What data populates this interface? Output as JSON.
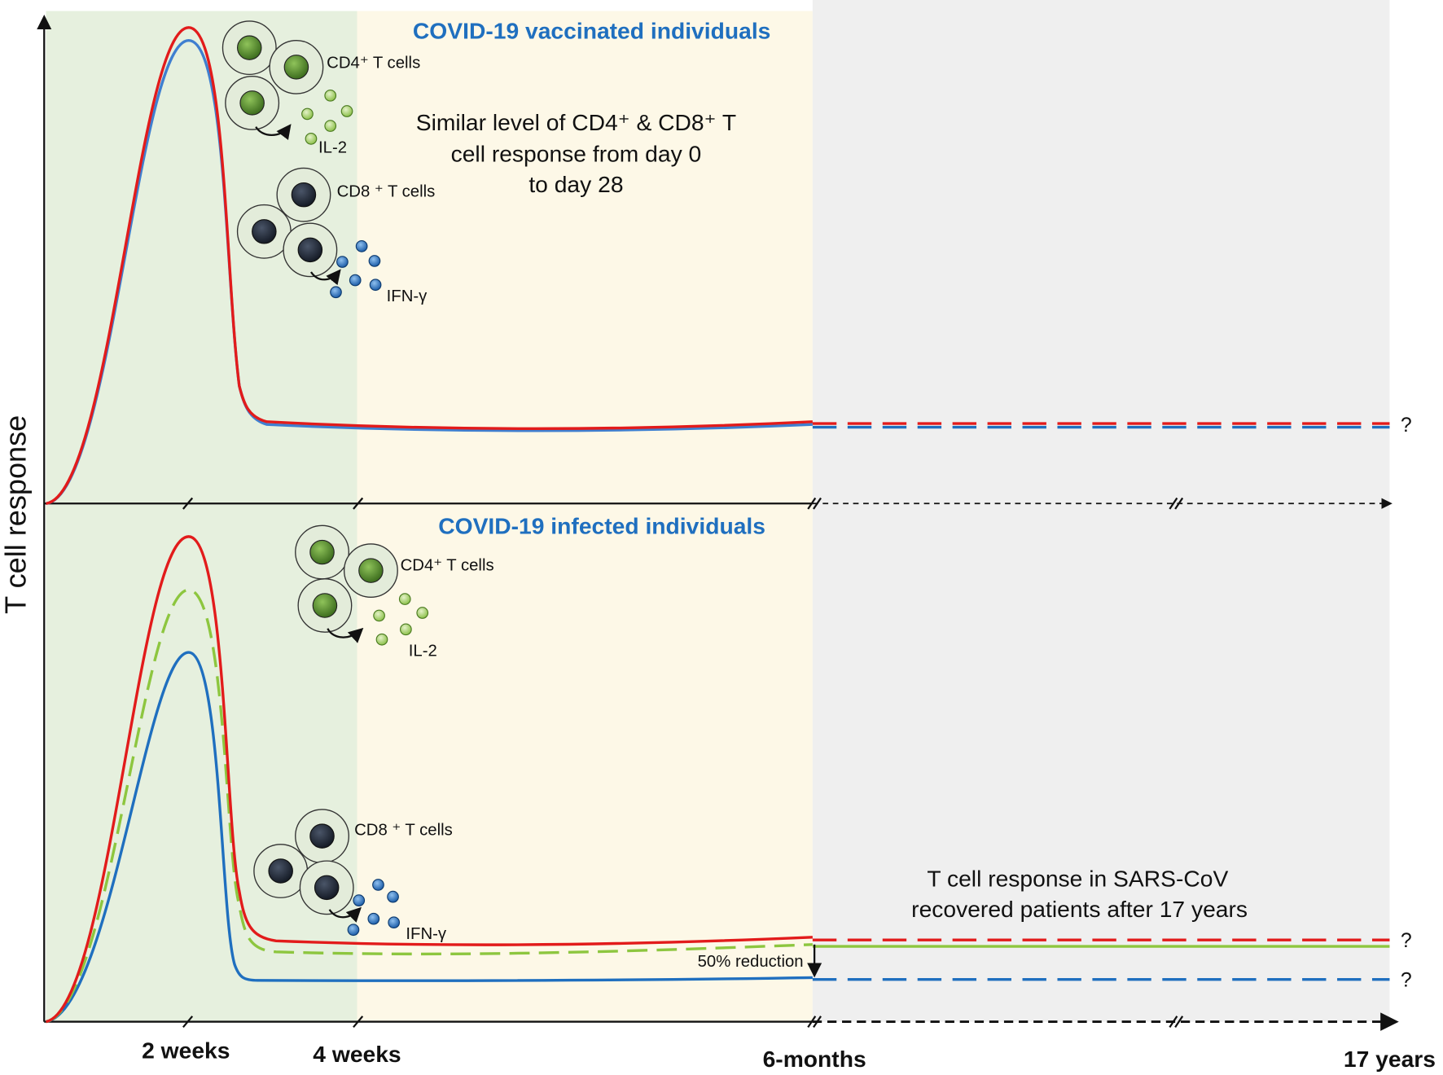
{
  "y_axis_label": "T cell response",
  "panels": [
    {
      "title": "COVID-19 vaccinated individuals",
      "cd4_label": "CD4⁺ T cells",
      "il2_label": "IL-2",
      "cd8_label": "CD8 ⁺ T cells",
      "ifn_label": "IFN-γ",
      "note": [
        "Similar level of CD4⁺ & CD8⁺ T",
        "cell response from day 0",
        "to day 28"
      ],
      "question_marks": [
        "?"
      ]
    },
    {
      "title": "COVID-19 infected individuals",
      "cd4_label": "CD4⁺ T cells",
      "il2_label": "IL-2",
      "cd8_label": "CD8 ⁺ T cells",
      "ifn_label": "IFN-γ",
      "note": [
        "T cell response in SARS-CoV",
        "recovered patients after 17 years"
      ],
      "reduction_label": "50% reduction",
      "question_marks": [
        "?",
        "?"
      ]
    }
  ],
  "x_labels": [
    "2 weeks",
    "4 weeks",
    "6-months",
    "17 years"
  ]
}
